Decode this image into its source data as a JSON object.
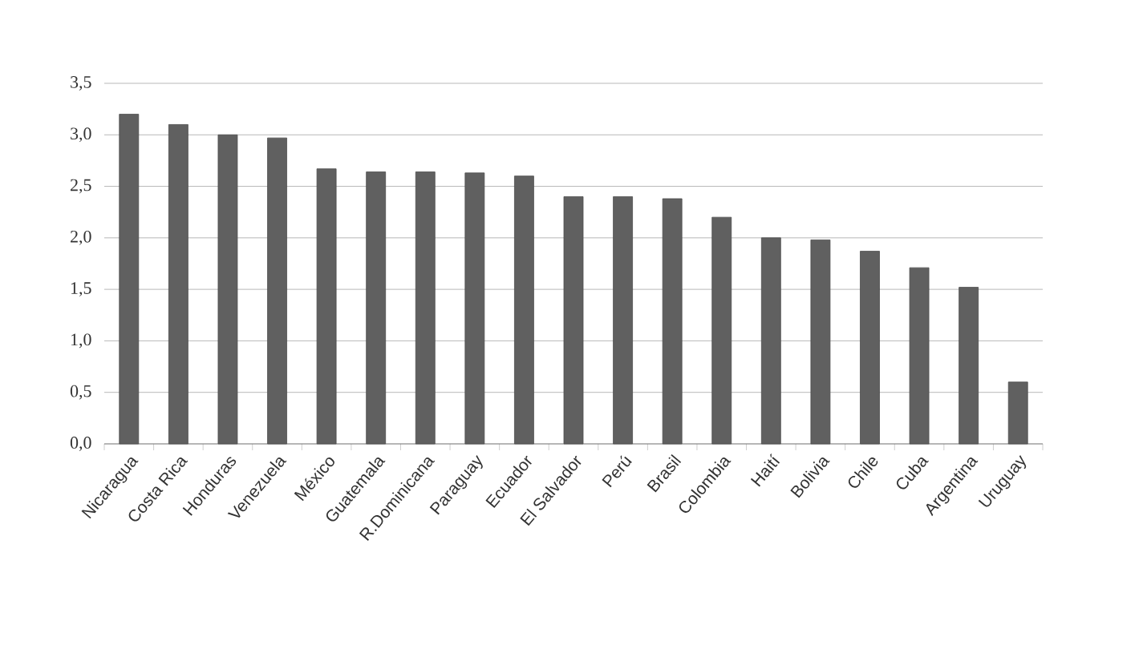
{
  "chart_data": {
    "type": "bar",
    "categories": [
      "Nicaragua",
      "Costa Rica",
      "Honduras",
      "Venezuela",
      "México",
      "Guatemala",
      "R.Dominicana",
      "Paraguay",
      "Ecuador",
      "El Salvador",
      "Perú",
      "Brasil",
      "Colombia",
      "Haití",
      "Bolivia",
      "Chile",
      "Cuba",
      "Argentina",
      "Uruguay"
    ],
    "values": [
      3.2,
      3.1,
      3.0,
      2.97,
      2.67,
      2.64,
      2.64,
      2.63,
      2.6,
      2.4,
      2.4,
      2.38,
      2.2,
      2.0,
      1.98,
      1.87,
      1.71,
      1.52,
      0.6
    ],
    "color": "#606060",
    "ylim": [
      0,
      3.5
    ],
    "yticks": [
      {
        "value": 0,
        "label": "0,0"
      },
      {
        "value": 0.5,
        "label": "0,5"
      },
      {
        "value": 1,
        "label": "1,0"
      },
      {
        "value": 1.5,
        "label": "1,5"
      },
      {
        "value": 2,
        "label": "2,0"
      },
      {
        "value": 2.5,
        "label": "2,5"
      },
      {
        "value": 3,
        "label": "3,0"
      },
      {
        "value": 3.5,
        "label": "3,5"
      }
    ],
    "grid": "y"
  }
}
